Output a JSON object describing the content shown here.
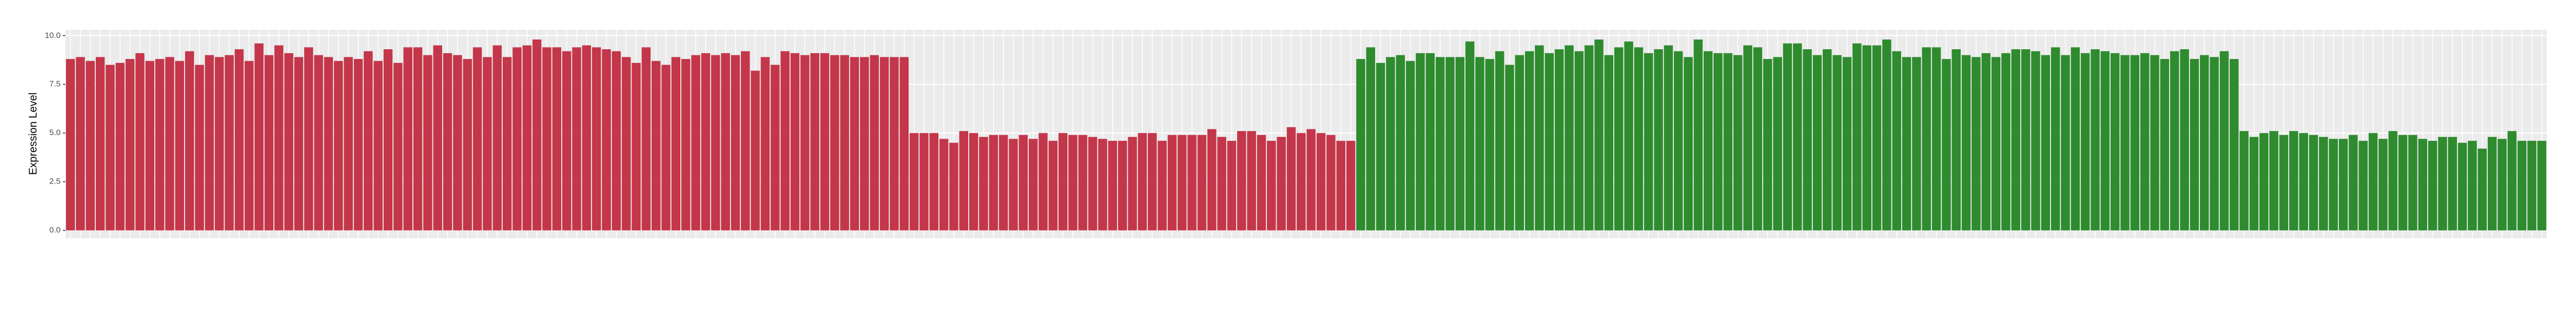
{
  "chart_data": {
    "type": "bar",
    "y_label": "Expression Level",
    "values": [
      8.8,
      8.9,
      8.7,
      8.9,
      8.5,
      8.6,
      8.8,
      9.1,
      8.7,
      8.8,
      8.9,
      8.7,
      9.2,
      8.5,
      9.0,
      8.9,
      9.0,
      9.3,
      8.7,
      9.6,
      9.0,
      9.5,
      9.1,
      8.9,
      9.4,
      9.0,
      8.9,
      8.7,
      8.9,
      8.8,
      9.2,
      8.7,
      9.3,
      8.6,
      9.4,
      9.4,
      9.0,
      9.5,
      9.1,
      9.0,
      8.8,
      9.4,
      8.9,
      9.5,
      8.9,
      9.4,
      9.5,
      9.8,
      9.4,
      9.4,
      9.2,
      9.4,
      9.5,
      9.4,
      9.3,
      9.2,
      8.9,
      8.6,
      9.4,
      8.7,
      8.5,
      8.9,
      8.8,
      9.0,
      9.1,
      9.0,
      9.1,
      9.0,
      9.2,
      8.2,
      8.9,
      8.5,
      9.2,
      9.1,
      9.0,
      9.1,
      9.1,
      9.0,
      9.0,
      8.9,
      8.9,
      9.0,
      8.9,
      8.9,
      8.9,
      5.0,
      5.0,
      5.0,
      4.7,
      4.5,
      5.1,
      5.0,
      4.8,
      4.9,
      4.9,
      4.7,
      4.9,
      4.7,
      5.0,
      4.6,
      5.0,
      4.9,
      4.9,
      4.8,
      4.7,
      4.6,
      4.6,
      4.8,
      5.0,
      5.0,
      4.6,
      4.9,
      4.9,
      4.9,
      4.9,
      5.2,
      4.8,
      4.6,
      5.1,
      5.1,
      4.9,
      4.6,
      4.8,
      5.3,
      5.0,
      5.2,
      5.0,
      4.9,
      4.6,
      4.6,
      8.8,
      9.4,
      8.6,
      8.9,
      9.0,
      8.7,
      9.1,
      9.1,
      8.9,
      8.9,
      8.9,
      9.7,
      8.9,
      8.8,
      9.2,
      8.5,
      9.0,
      9.2,
      9.5,
      9.1,
      9.3,
      9.5,
      9.2,
      9.5,
      9.8,
      9.0,
      9.4,
      9.7,
      9.4,
      9.1,
      9.3,
      9.5,
      9.2,
      8.9,
      9.8,
      9.2,
      9.1,
      9.1,
      9.0,
      9.5,
      9.4,
      8.8,
      8.9,
      9.6,
      9.6,
      9.3,
      9.0,
      9.3,
      9.0,
      8.9,
      9.6,
      9.5,
      9.5,
      9.8,
      9.2,
      8.9,
      8.9,
      9.4,
      9.4,
      8.8,
      9.3,
      9.0,
      8.9,
      9.1,
      8.9,
      9.1,
      9.3,
      9.3,
      9.2,
      9.0,
      9.4,
      9.0,
      9.4,
      9.1,
      9.3,
      9.2,
      9.1,
      9.0,
      9.0,
      9.1,
      9.0,
      8.8,
      9.2,
      9.3,
      8.8,
      9.0,
      8.9,
      9.2,
      8.8,
      5.1,
      4.8,
      5.0,
      5.1,
      4.9,
      5.1,
      5.0,
      4.9,
      4.8,
      4.7,
      4.7,
      4.9,
      4.6,
      5.0,
      4.7,
      5.1,
      4.9,
      4.9,
      4.7,
      4.6,
      4.8,
      4.8,
      4.5,
      4.6,
      4.2,
      4.8,
      4.7,
      5.1,
      4.6,
      4.6,
      4.6
    ],
    "colors": [
      "#c4364a",
      "#c4364a",
      "#c4364a",
      "#c4364a",
      "#c4364a",
      "#c4364a",
      "#c4364a",
      "#c4364a",
      "#c4364a",
      "#c4364a",
      "#c4364a",
      "#c4364a",
      "#c4364a",
      "#c4364a",
      "#c4364a",
      "#c4364a",
      "#c4364a",
      "#c4364a",
      "#c4364a",
      "#c4364a",
      "#c4364a",
      "#c4364a",
      "#c4364a",
      "#c4364a",
      "#c4364a",
      "#c4364a",
      "#c4364a",
      "#c4364a",
      "#c4364a",
      "#c4364a",
      "#c4364a",
      "#c4364a",
      "#c4364a",
      "#c4364a",
      "#c4364a",
      "#c4364a",
      "#c4364a",
      "#c4364a",
      "#c4364a",
      "#c4364a",
      "#c4364a",
      "#c4364a",
      "#c4364a",
      "#c4364a",
      "#c4364a",
      "#c4364a",
      "#c4364a",
      "#c4364a",
      "#c4364a",
      "#c4364a",
      "#c4364a",
      "#c4364a",
      "#c4364a",
      "#c4364a",
      "#c4364a",
      "#c4364a",
      "#c4364a",
      "#c4364a",
      "#c4364a",
      "#c4364a",
      "#c4364a",
      "#c4364a",
      "#c4364a",
      "#c4364a",
      "#c4364a",
      "#c4364a",
      "#c4364a",
      "#c4364a",
      "#c4364a",
      "#c4364a",
      "#c4364a",
      "#c4364a",
      "#c4364a",
      "#c4364a",
      "#c4364a",
      "#c4364a",
      "#c4364a",
      "#c4364a",
      "#c4364a",
      "#c4364a",
      "#c4364a",
      "#c4364a",
      "#c4364a",
      "#c4364a",
      "#c4364a",
      "#c4364a",
      "#c4364a",
      "#c4364a",
      "#c4364a",
      "#c4364a",
      "#c4364a",
      "#c4364a",
      "#c4364a",
      "#c4364a",
      "#c4364a",
      "#c4364a",
      "#c4364a",
      "#c4364a",
      "#c4364a",
      "#c4364a",
      "#c4364a",
      "#c4364a",
      "#c4364a",
      "#c4364a",
      "#c4364a",
      "#c4364a",
      "#c4364a",
      "#c4364a",
      "#c4364a",
      "#c4364a",
      "#c4364a",
      "#c4364a",
      "#c4364a",
      "#c4364a",
      "#c4364a",
      "#c4364a",
      "#c4364a",
      "#c4364a",
      "#c4364a",
      "#c4364a",
      "#c4364a",
      "#c4364a",
      "#c4364a",
      "#c4364a",
      "#c4364a",
      "#c4364a",
      "#c4364a",
      "#c4364a",
      "#c4364a",
      "#c4364a",
      "#2e8b2e",
      "#2e8b2e",
      "#2e8b2e",
      "#2e8b2e",
      "#2e8b2e",
      "#2e8b2e",
      "#2e8b2e",
      "#2e8b2e",
      "#2e8b2e",
      "#2e8b2e",
      "#2e8b2e",
      "#2e8b2e",
      "#2e8b2e",
      "#2e8b2e",
      "#2e8b2e",
      "#2e8b2e",
      "#2e8b2e",
      "#2e8b2e",
      "#2e8b2e",
      "#2e8b2e",
      "#2e8b2e",
      "#2e8b2e",
      "#2e8b2e",
      "#2e8b2e",
      "#2e8b2e",
      "#2e8b2e",
      "#2e8b2e",
      "#2e8b2e",
      "#2e8b2e",
      "#2e8b2e",
      "#2e8b2e",
      "#2e8b2e",
      "#2e8b2e",
      "#2e8b2e",
      "#2e8b2e",
      "#2e8b2e",
      "#2e8b2e",
      "#2e8b2e",
      "#2e8b2e",
      "#2e8b2e",
      "#2e8b2e",
      "#2e8b2e",
      "#2e8b2e",
      "#2e8b2e",
      "#2e8b2e",
      "#2e8b2e",
      "#2e8b2e",
      "#2e8b2e",
      "#2e8b2e",
      "#2e8b2e",
      "#2e8b2e",
      "#2e8b2e",
      "#2e8b2e",
      "#2e8b2e",
      "#2e8b2e",
      "#2e8b2e",
      "#2e8b2e",
      "#2e8b2e",
      "#2e8b2e",
      "#2e8b2e",
      "#2e8b2e",
      "#2e8b2e",
      "#2e8b2e",
      "#2e8b2e",
      "#2e8b2e",
      "#2e8b2e",
      "#2e8b2e",
      "#2e8b2e",
      "#2e8b2e",
      "#2e8b2e",
      "#2e8b2e",
      "#2e8b2e",
      "#2e8b2e",
      "#2e8b2e",
      "#2e8b2e",
      "#2e8b2e",
      "#2e8b2e",
      "#2e8b2e",
      "#2e8b2e",
      "#2e8b2e",
      "#2e8b2e",
      "#2e8b2e",
      "#2e8b2e",
      "#2e8b2e",
      "#2e8b2e",
      "#2e8b2e",
      "#2e8b2e",
      "#2e8b2e",
      "#2e8b2e",
      "#2e8b2e",
      "#2e8b2e",
      "#2e8b2e",
      "#2e8b2e",
      "#2e8b2e",
      "#2e8b2e",
      "#2e8b2e",
      "#2e8b2e",
      "#2e8b2e",
      "#2e8b2e",
      "#2e8b2e",
      "#2e8b2e",
      "#2e8b2e",
      "#2e8b2e",
      "#2e8b2e",
      "#2e8b2e",
      "#2e8b2e",
      "#2e8b2e",
      "#2e8b2e",
      "#2e8b2e",
      "#2e8b2e",
      "#2e8b2e",
      "#2e8b2e",
      "#2e8b2e",
      "#2e8b2e",
      "#2e8b2e",
      "#2e8b2e",
      "#2e8b2e",
      "#2e8b2e",
      "#2e8b2e",
      "#2e8b2e"
    ],
    "ylim": [
      -0.4,
      10.3
    ],
    "yticks": [
      {
        "value": 0,
        "label": "0.0"
      },
      {
        "value": 2.5,
        "label": "2.5"
      },
      {
        "value": 5,
        "label": "5.0"
      },
      {
        "value": 7.5,
        "label": "7.5"
      },
      {
        "value": 10,
        "label": "10.0"
      }
    ],
    "grid": true
  }
}
